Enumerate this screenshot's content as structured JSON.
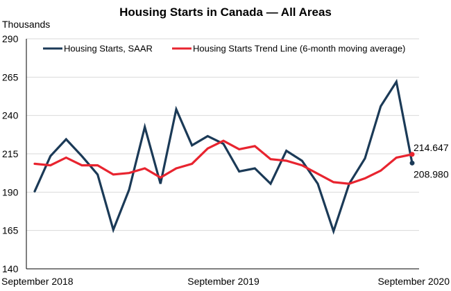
{
  "chart_data": {
    "type": "line",
    "title": "Housing Starts in Canada — All Areas",
    "ylabel": "Thousands",
    "ylim": [
      140,
      290
    ],
    "yticks": [
      140,
      165,
      190,
      215,
      240,
      265,
      290
    ],
    "x_tick_labels": [
      {
        "index": 0,
        "label": "September 2018"
      },
      {
        "index": 12,
        "label": "September 2019"
      },
      {
        "index": 24,
        "label": "September 2020"
      }
    ],
    "grid": "horizontal",
    "legend_position": "top",
    "series": [
      {
        "name": "Housing Starts, SAAR",
        "color": "#1b3a57",
        "values": [
          190.5,
          213.5,
          224.5,
          213.5,
          201.5,
          165.5,
          191.5,
          232.5,
          195.5,
          244.0,
          220.5,
          226.5,
          221.5,
          203.5,
          205.5,
          195.5,
          217.0,
          210.5,
          195.5,
          164.5,
          195.5,
          212.0,
          246.0,
          262.0,
          208.98
        ]
      },
      {
        "name": "Housing Starts Trend Line (6-month moving average)",
        "color": "#e8242f",
        "values": [
          208.5,
          207.5,
          212.5,
          207.5,
          207.5,
          201.5,
          202.5,
          205.5,
          199.5,
          205.5,
          208.5,
          218.5,
          223.5,
          218.0,
          220.0,
          211.5,
          210.5,
          207.5,
          202.0,
          196.5,
          195.5,
          199.0,
          204.0,
          212.5,
          214.647
        ]
      }
    ],
    "end_labels": [
      {
        "series": 1,
        "text": "214.647"
      },
      {
        "series": 0,
        "text": "208.980"
      }
    ]
  }
}
